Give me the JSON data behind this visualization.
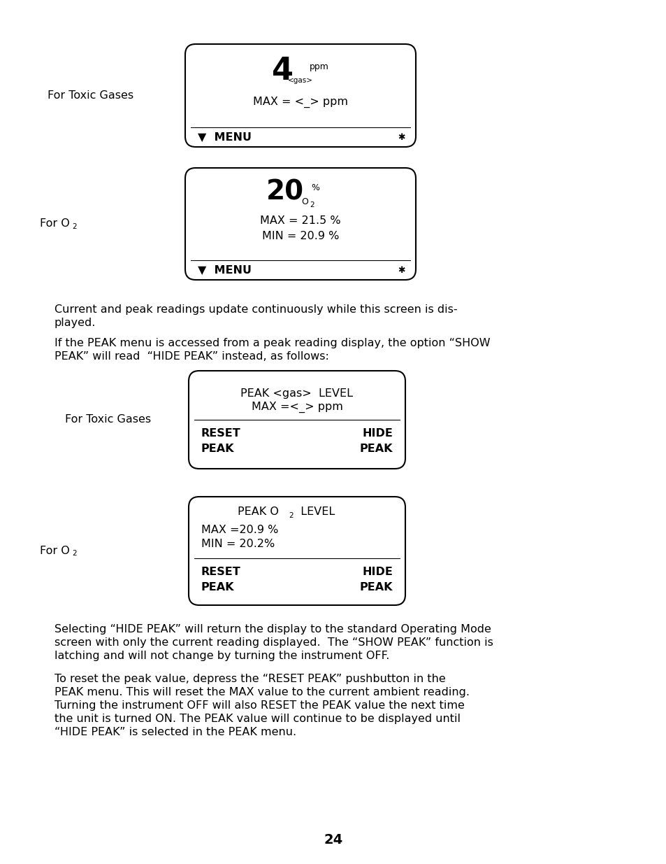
{
  "bg_color": "#ffffff",
  "page_number": "24",
  "box1_label": "For Toxic Gases",
  "box1_big": "4",
  "box1_ppm": "ppm",
  "box1_gas": "<gas>",
  "box1_max": "MAX = <_> ppm",
  "box1_menu": "▼  MENU",
  "box1_star": "✱",
  "box2_label_main": "For O",
  "box2_label_sub": "2",
  "box2_big": "20",
  "box2_pct": "%",
  "box2_o2_main": "O",
  "box2_o2_sub": "2",
  "box2_max": "MAX = 21.5 %",
  "box2_min": "MIN = 20.9 %",
  "box2_menu": "▼  MENU",
  "box2_star": "✱",
  "para1_lines": [
    "Current and peak readings update continuously while this screen is dis-",
    "played."
  ],
  "para2_lines": [
    "If the PEAK menu is accessed from a peak reading display, the option “SHOW",
    "PEAK” will read  “HIDE PEAK” instead, as follows:"
  ],
  "box3_label": "For Toxic Gases",
  "box3_line1": "PEAK <gas>  LEVEL",
  "box3_line2": "MAX =<_> ppm",
  "box3_reset": "RESET",
  "box3_hide": "HIDE",
  "box3_peak_l": "PEAK",
  "box3_peak_r": "PEAK",
  "box4_label_main": "For O",
  "box4_label_sub": "2",
  "box4_peak_main": "PEAK O",
  "box4_peak_sub": "2",
  "box4_peak_level": "  LEVEL",
  "box4_max": "MAX =20.9 %",
  "box4_min": "MIN = 20.2%",
  "box4_reset": "RESET",
  "box4_hide": "HIDE",
  "box4_peak_l": "PEAK",
  "box4_peak_r": "PEAK",
  "para3_lines": [
    "Selecting “HIDE PEAK” will return the display to the standard Operating Mode",
    "screen with only the current reading displayed.  The “SHOW PEAK” function is",
    "latching and will not change by turning the instrument OFF."
  ],
  "para4_lines": [
    "To reset the peak value, depress the “RESET PEAK” pushbutton in the",
    "PEAK menu. This will reset the MAX value to the current ambient reading.",
    "Turning the instrument OFF will also RESET the PEAK value the next time",
    "the unit is turned ON. The PEAK value will continue to be displayed until",
    "“HIDE PEAK” is selected in the PEAK menu."
  ]
}
